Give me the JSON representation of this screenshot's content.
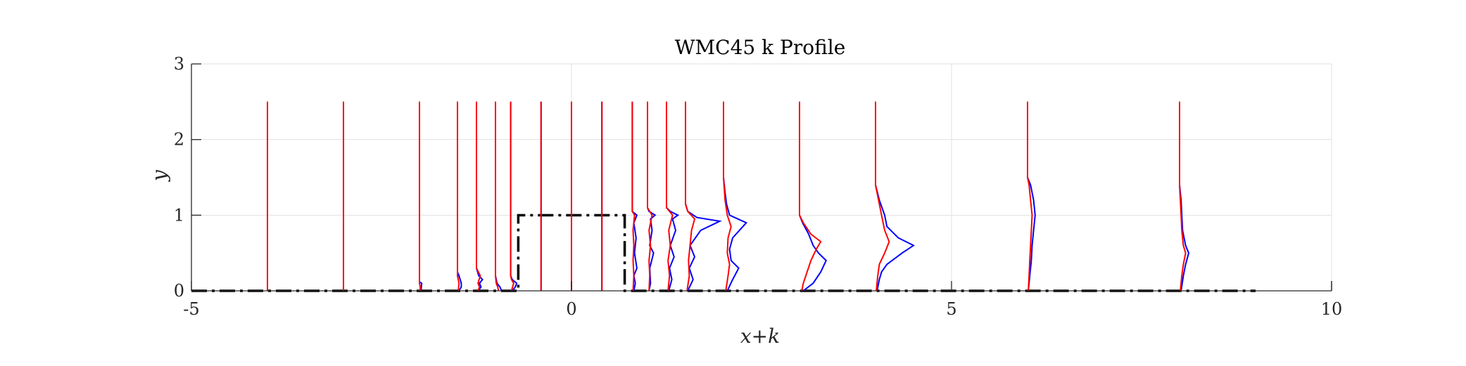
{
  "chart_data": {
    "type": "line",
    "title": "WMC45 k Profile",
    "xlabel": "x+k",
    "ylabel": "y",
    "xlim": [
      -5,
      10
    ],
    "ylim": [
      0,
      3
    ],
    "xticks": [
      -5,
      0,
      5,
      10
    ],
    "yticks": [
      0,
      1,
      2,
      3
    ],
    "grid": true,
    "colors": {
      "series_a": "#0000ff",
      "series_b": "#ff0000",
      "geometry": "#000000"
    },
    "profile_stations": [
      -4,
      -3,
      -2,
      -1.5,
      -1.25,
      -1,
      -0.8,
      -0.4,
      0,
      0.4,
      0.8,
      1,
      1.25,
      1.5,
      2,
      3,
      4,
      6,
      8
    ],
    "profile_top": 2.5,
    "geometry_outline": {
      "x": [
        -5,
        -0.7,
        -0.7,
        0.7,
        0.7,
        9
      ],
      "y": [
        0,
        0,
        1,
        1,
        0,
        0
      ]
    },
    "series": [
      {
        "profiles": [
          {
            "x0": -4,
            "points": []
          },
          {
            "x0": -3,
            "points": []
          },
          {
            "x0": -2,
            "points": [
              [
                0.0,
                0.02
              ],
              [
                0.1,
                0.03
              ],
              [
                0.12,
                0.0
              ]
            ]
          },
          {
            "x0": -1.5,
            "points": [
              [
                0.0,
                0.02
              ],
              [
                0.05,
                0.05
              ],
              [
                0.1,
                0.05
              ],
              [
                0.2,
                0.02
              ],
              [
                0.25,
                0.0
              ]
            ]
          },
          {
            "x0": -1.25,
            "points": [
              [
                0.0,
                0.02
              ],
              [
                0.05,
                0.06
              ],
              [
                0.1,
                0.04
              ],
              [
                0.15,
                0.08
              ],
              [
                0.2,
                0.03
              ],
              [
                0.3,
                0.0
              ]
            ]
          },
          {
            "x0": -1,
            "points": [
              [
                0.0,
                0.08
              ],
              [
                0.05,
                0.06
              ],
              [
                0.1,
                0.02
              ],
              [
                0.2,
                0.0
              ]
            ]
          },
          {
            "x0": -0.8,
            "points": [
              [
                0.0,
                0.02
              ],
              [
                0.05,
                0.06
              ],
              [
                0.1,
                0.08
              ],
              [
                0.15,
                0.02
              ],
              [
                0.2,
                0.0
              ]
            ]
          },
          {
            "x0": -0.4,
            "points": []
          },
          {
            "x0": 0,
            "points": []
          },
          {
            "x0": 0.4,
            "points": []
          },
          {
            "x0": 0.8,
            "points": [
              [
                0.0,
                0.02
              ],
              [
                0.1,
                0.04
              ],
              [
                0.2,
                0.02
              ],
              [
                0.3,
                0.06
              ],
              [
                0.5,
                0.03
              ],
              [
                0.7,
                0.05
              ],
              [
                0.9,
                0.02
              ],
              [
                1.0,
                0.06
              ],
              [
                1.05,
                0.0
              ]
            ]
          },
          {
            "x0": 1,
            "points": [
              [
                0.0,
                0.02
              ],
              [
                0.1,
                0.04
              ],
              [
                0.3,
                0.03
              ],
              [
                0.5,
                0.08
              ],
              [
                0.6,
                0.03
              ],
              [
                0.8,
                0.06
              ],
              [
                0.95,
                0.04
              ],
              [
                1.0,
                0.1
              ],
              [
                1.05,
                0.02
              ],
              [
                1.1,
                0.0
              ]
            ]
          },
          {
            "x0": 1.25,
            "points": [
              [
                0.0,
                0.03
              ],
              [
                0.15,
                0.07
              ],
              [
                0.3,
                0.04
              ],
              [
                0.45,
                0.1
              ],
              [
                0.6,
                0.05
              ],
              [
                0.8,
                0.12
              ],
              [
                0.95,
                0.08
              ],
              [
                1.0,
                0.15
              ],
              [
                1.05,
                0.05
              ],
              [
                1.1,
                0.0
              ]
            ]
          },
          {
            "x0": 1.5,
            "points": [
              [
                0.0,
                0.03
              ],
              [
                0.15,
                0.1
              ],
              [
                0.3,
                0.05
              ],
              [
                0.45,
                0.12
              ],
              [
                0.6,
                0.06
              ],
              [
                0.8,
                0.2
              ],
              [
                0.92,
                0.45
              ],
              [
                0.97,
                0.15
              ],
              [
                1.05,
                0.03
              ],
              [
                1.15,
                0.0
              ]
            ]
          },
          {
            "x0": 2,
            "points": [
              [
                0.0,
                0.05
              ],
              [
                0.15,
                0.12
              ],
              [
                0.3,
                0.2
              ],
              [
                0.4,
                0.1
              ],
              [
                0.55,
                0.08
              ],
              [
                0.7,
                0.12
              ],
              [
                0.9,
                0.3
              ],
              [
                1.0,
                0.08
              ],
              [
                1.15,
                0.04
              ],
              [
                1.3,
                0.02
              ],
              [
                1.5,
                0.0
              ]
            ]
          },
          {
            "x0": 3,
            "points": [
              [
                0.0,
                0.05
              ],
              [
                0.1,
                0.18
              ],
              [
                0.25,
                0.28
              ],
              [
                0.4,
                0.35
              ],
              [
                0.5,
                0.25
              ],
              [
                0.6,
                0.18
              ],
              [
                0.75,
                0.12
              ],
              [
                0.9,
                0.04
              ],
              [
                1.0,
                0.0
              ]
            ]
          },
          {
            "x0": 4,
            "points": [
              [
                0.0,
                0.02
              ],
              [
                0.15,
                0.05
              ],
              [
                0.25,
                0.08
              ],
              [
                0.35,
                0.15
              ],
              [
                0.5,
                0.35
              ],
              [
                0.6,
                0.5
              ],
              [
                0.7,
                0.3
              ],
              [
                0.85,
                0.15
              ],
              [
                1.0,
                0.12
              ],
              [
                1.2,
                0.05
              ],
              [
                1.4,
                0.0
              ]
            ]
          },
          {
            "x0": 6,
            "points": [
              [
                0.0,
                0.01
              ],
              [
                0.2,
                0.03
              ],
              [
                0.4,
                0.05
              ],
              [
                0.6,
                0.06
              ],
              [
                0.8,
                0.08
              ],
              [
                1.0,
                0.1
              ],
              [
                1.2,
                0.08
              ],
              [
                1.4,
                0.04
              ],
              [
                1.5,
                0.0
              ]
            ]
          },
          {
            "x0": 8,
            "points": [
              [
                0.0,
                0.02
              ],
              [
                0.2,
                0.05
              ],
              [
                0.35,
                0.08
              ],
              [
                0.5,
                0.12
              ],
              [
                0.6,
                0.08
              ],
              [
                0.8,
                0.04
              ],
              [
                1.0,
                0.03
              ],
              [
                1.2,
                0.02
              ],
              [
                1.4,
                0.0
              ]
            ]
          }
        ]
      },
      {
        "profiles": [
          {
            "x0": -4,
            "points": []
          },
          {
            "x0": -3,
            "points": []
          },
          {
            "x0": -2,
            "points": [
              [
                0.0,
                0.01
              ],
              [
                0.05,
                0.01
              ],
              [
                0.1,
                0.0
              ]
            ]
          },
          {
            "x0": -1.5,
            "points": [
              [
                0.0,
                0.01
              ],
              [
                0.1,
                0.02
              ],
              [
                0.2,
                0.0
              ]
            ]
          },
          {
            "x0": -1.25,
            "points": [
              [
                0.0,
                0.02
              ],
              [
                0.05,
                0.04
              ],
              [
                0.1,
                0.02
              ],
              [
                0.2,
                0.05
              ],
              [
                0.3,
                0.0
              ]
            ]
          },
          {
            "x0": -1,
            "points": [
              [
                0.0,
                0.04
              ],
              [
                0.05,
                0.03
              ],
              [
                0.1,
                0.01
              ],
              [
                0.2,
                0.0
              ]
            ]
          },
          {
            "x0": -0.8,
            "points": [
              [
                0.0,
                0.01
              ],
              [
                0.1,
                0.04
              ],
              [
                0.15,
                0.01
              ],
              [
                0.2,
                0.0
              ]
            ]
          },
          {
            "x0": -0.4,
            "points": []
          },
          {
            "x0": 0,
            "points": []
          },
          {
            "x0": 0.4,
            "points": []
          },
          {
            "x0": 0.8,
            "points": [
              [
                0.0,
                0.01
              ],
              [
                0.2,
                0.02
              ],
              [
                0.4,
                0.01
              ],
              [
                0.6,
                0.02
              ],
              [
                0.8,
                0.01
              ],
              [
                1.0,
                0.03
              ],
              [
                1.05,
                0.0
              ]
            ]
          },
          {
            "x0": 1,
            "points": [
              [
                0.0,
                0.02
              ],
              [
                0.2,
                0.03
              ],
              [
                0.4,
                0.02
              ],
              [
                0.6,
                0.04
              ],
              [
                0.8,
                0.02
              ],
              [
                1.0,
                0.06
              ],
              [
                1.1,
                0.0
              ]
            ]
          },
          {
            "x0": 1.25,
            "points": [
              [
                0.0,
                0.02
              ],
              [
                0.2,
                0.04
              ],
              [
                0.4,
                0.02
              ],
              [
                0.6,
                0.05
              ],
              [
                0.8,
                0.03
              ],
              [
                1.0,
                0.08
              ],
              [
                1.1,
                0.0
              ]
            ]
          },
          {
            "x0": 1.5,
            "points": [
              [
                0.0,
                0.02
              ],
              [
                0.2,
                0.05
              ],
              [
                0.4,
                0.04
              ],
              [
                0.6,
                0.06
              ],
              [
                0.8,
                0.08
              ],
              [
                0.95,
                0.12
              ],
              [
                1.05,
                0.03
              ],
              [
                1.15,
                0.0
              ]
            ]
          },
          {
            "x0": 2,
            "points": [
              [
                0.0,
                0.03
              ],
              [
                0.2,
                0.06
              ],
              [
                0.35,
                0.08
              ],
              [
                0.5,
                0.05
              ],
              [
                0.7,
                0.06
              ],
              [
                0.85,
                0.1
              ],
              [
                1.0,
                0.05
              ],
              [
                1.2,
                0.02
              ],
              [
                1.5,
                0.0
              ]
            ]
          },
          {
            "x0": 3,
            "points": [
              [
                0.0,
                0.03
              ],
              [
                0.1,
                0.05
              ],
              [
                0.25,
                0.1
              ],
              [
                0.4,
                0.15
              ],
              [
                0.55,
                0.22
              ],
              [
                0.65,
                0.28
              ],
              [
                0.75,
                0.15
              ],
              [
                0.9,
                0.05
              ],
              [
                1.0,
                0.0
              ]
            ]
          },
          {
            "x0": 4,
            "points": [
              [
                0.0,
                0.01
              ],
              [
                0.2,
                0.03
              ],
              [
                0.35,
                0.05
              ],
              [
                0.5,
                0.12
              ],
              [
                0.65,
                0.18
              ],
              [
                0.8,
                0.12
              ],
              [
                1.0,
                0.08
              ],
              [
                1.2,
                0.04
              ],
              [
                1.4,
                0.0
              ]
            ]
          },
          {
            "x0": 6,
            "points": [
              [
                0.0,
                0.01
              ],
              [
                0.2,
                0.02
              ],
              [
                0.4,
                0.03
              ],
              [
                0.6,
                0.04
              ],
              [
                0.8,
                0.05
              ],
              [
                1.0,
                0.06
              ],
              [
                1.2,
                0.04
              ],
              [
                1.4,
                0.02
              ],
              [
                1.5,
                0.0
              ]
            ]
          },
          {
            "x0": 8,
            "points": [
              [
                0.0,
                0.01
              ],
              [
                0.2,
                0.03
              ],
              [
                0.35,
                0.05
              ],
              [
                0.5,
                0.08
              ],
              [
                0.6,
                0.05
              ],
              [
                0.8,
                0.03
              ],
              [
                1.0,
                0.02
              ],
              [
                1.2,
                0.01
              ],
              [
                1.4,
                0.0
              ]
            ]
          }
        ]
      }
    ]
  }
}
